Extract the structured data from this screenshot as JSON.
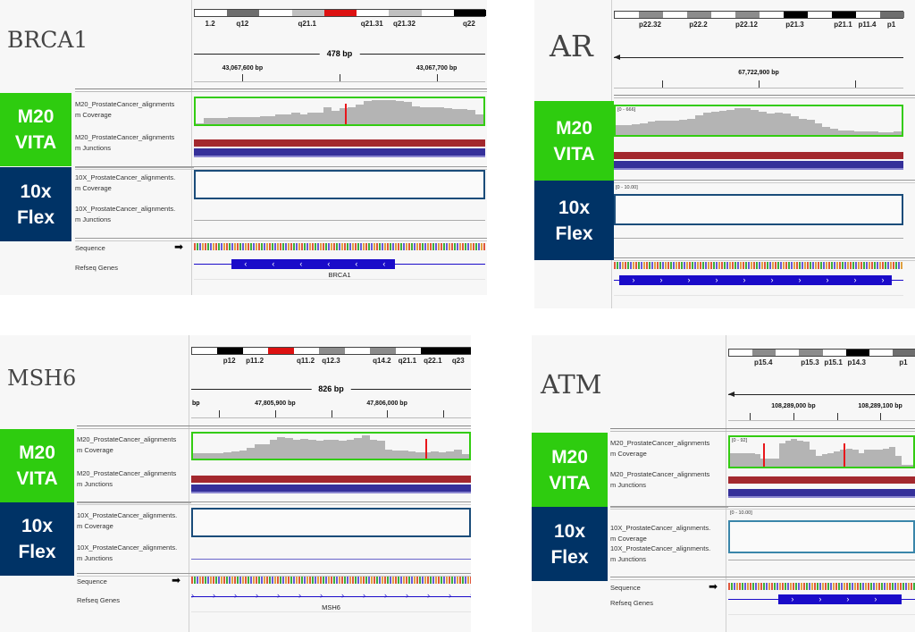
{
  "colors": {
    "m20_badge": "#2ecc0f",
    "flex_badge": "#003366",
    "m20_box": "#33cc11",
    "flex_box": "#1a4c7a",
    "atm_flex_box": "#3a86aa",
    "coverage": "#b4b4b4",
    "junction_red": "#a3282e",
    "junction_blue": "#35309a",
    "gene": "#1a0bc9",
    "mismatch": "#e8161b"
  },
  "badges": {
    "m20": "M20\nVITA",
    "flex": "10x\nFlex"
  },
  "tracks": {
    "m20_cov": [
      "M20_ProstateCancer_alignments",
      "m Coverage"
    ],
    "m20_junc": [
      "M20_ProstateCancer_alignments",
      "m Junctions"
    ],
    "flex_cov": [
      "10X_ProstateCancer_alignments.",
      "m Coverage"
    ],
    "flex_junc": [
      "10X_ProstateCancer_alignments.",
      "m Junctions"
    ],
    "sequence": "Sequence",
    "genes": "Refseq Genes"
  },
  "panels": [
    {
      "gene": "BRCA1",
      "show_track_labels": true,
      "bands": [
        {
          "name": "1.2",
          "stain": "gneg"
        },
        {
          "name": "q12",
          "stain": "gpos75"
        },
        {
          "name": "",
          "stain": "gneg"
        },
        {
          "name": "q21.1",
          "stain": "gpos25"
        },
        {
          "name": "",
          "stain": "centromere"
        },
        {
          "name": "q21.31",
          "stain": "gneg"
        },
        {
          "name": "q21.32",
          "stain": "gpos25"
        },
        {
          "name": "",
          "stain": "gneg"
        },
        {
          "name": "q22",
          "stain": "gpos100"
        }
      ],
      "span": "478 bp",
      "strand_arrow": false,
      "ticks": [
        "43,067,600 bp",
        "",
        "43,067,700 bp"
      ],
      "m20_range": "",
      "flex_range": "",
      "coverage_profile": [
        0.05,
        0.25,
        0.26,
        0.27,
        0.28,
        0.3,
        0.3,
        0.31,
        0.33,
        0.35,
        0.4,
        0.42,
        0.48,
        0.4,
        0.5,
        0.5,
        0.7,
        0.55,
        0.68,
        0.7,
        0.8,
        0.95,
        1,
        1,
        1,
        0.98,
        0.92,
        0.75,
        0.72,
        0.72,
        0.7,
        0.68,
        0.63,
        0.62,
        0.58,
        0.4
      ],
      "mismatch_at": [
        0.52
      ],
      "gene_label": "BRCA1",
      "gene_strand": "minus"
    },
    {
      "gene": "AR",
      "show_track_labels": false,
      "bands": [
        {
          "name": "",
          "stain": "gneg"
        },
        {
          "name": "p22.32",
          "stain": "gpos50"
        },
        {
          "name": "",
          "stain": "gneg"
        },
        {
          "name": "p22.2",
          "stain": "gpos50"
        },
        {
          "name": "",
          "stain": "gneg"
        },
        {
          "name": "p22.12",
          "stain": "gpos50"
        },
        {
          "name": "",
          "stain": "gneg"
        },
        {
          "name": "p21.3",
          "stain": "gpos100"
        },
        {
          "name": "",
          "stain": "gneg"
        },
        {
          "name": "p21.1",
          "stain": "gpos100"
        },
        {
          "name": "p11.4",
          "stain": "gneg"
        },
        {
          "name": "p1",
          "stain": "gpos75"
        }
      ],
      "span": "",
      "strand_arrow": true,
      "ticks": [
        "",
        "67,722,900 bp",
        ""
      ],
      "m20_range": "[0 - 666]",
      "flex_range": "[0 - 10.00]",
      "coverage_profile": [
        0.38,
        0.38,
        0.4,
        0.45,
        0.5,
        0.52,
        0.52,
        0.55,
        0.56,
        0.6,
        0.75,
        0.82,
        0.88,
        0.9,
        0.95,
        1,
        1,
        0.92,
        0.86,
        0.8,
        0.84,
        0.8,
        0.7,
        0.6,
        0.56,
        0.45,
        0.3,
        0.22,
        0.18,
        0.16,
        0.15,
        0.14,
        0.12,
        0.1,
        0.1,
        0.12
      ],
      "mismatch_at": [],
      "gene_label": "",
      "gene_strand": "plus"
    },
    {
      "gene": "MSH6",
      "show_track_labels": true,
      "bands": [
        {
          "name": "",
          "stain": "gneg"
        },
        {
          "name": "p12",
          "stain": "gpos100"
        },
        {
          "name": "p11.2",
          "stain": "gneg"
        },
        {
          "name": "",
          "stain": "centromere"
        },
        {
          "name": "q11.2",
          "stain": "gneg"
        },
        {
          "name": "q12.3",
          "stain": "gpos50"
        },
        {
          "name": "",
          "stain": "gneg"
        },
        {
          "name": "q14.2",
          "stain": "gpos50"
        },
        {
          "name": "q21.1",
          "stain": "gneg"
        },
        {
          "name": "q22.1",
          "stain": "gpos100"
        },
        {
          "name": "q23",
          "stain": "gpos100"
        }
      ],
      "span": "826 bp",
      "strand_arrow": false,
      "ticks": [
        "",
        "47,805,900 bp",
        "",
        "47,806,000 bp",
        ""
      ],
      "tick_leading": "bp",
      "m20_range": "",
      "flex_range": "",
      "coverage_profile": [
        0.22,
        0.22,
        0.22,
        0.22,
        0.28,
        0.3,
        0.35,
        0.45,
        0.62,
        0.6,
        0.8,
        0.92,
        0.9,
        0.82,
        0.85,
        0.8,
        0.78,
        0.8,
        0.82,
        0.78,
        0.82,
        0.88,
        1,
        0.82,
        0.78,
        0.38,
        0.36,
        0.34,
        0.3,
        0.28,
        0.27,
        0.3,
        0.28,
        0.3,
        0.38,
        0.2
      ],
      "mismatch_at": [
        0.84
      ],
      "gene_label": "MSH6",
      "gene_strand": "plus"
    },
    {
      "gene": "ATM",
      "show_track_labels": true,
      "bands": [
        {
          "name": "",
          "stain": "gneg"
        },
        {
          "name": "p15.4",
          "stain": "gpos50"
        },
        {
          "name": "",
          "stain": "gneg"
        },
        {
          "name": "p15.3",
          "stain": "gpos50"
        },
        {
          "name": "p15.1",
          "stain": "gneg"
        },
        {
          "name": "p14.3",
          "stain": "gpos100"
        },
        {
          "name": "",
          "stain": "gneg"
        },
        {
          "name": "p1",
          "stain": "gpos75"
        }
      ],
      "span": "",
      "strand_arrow": true,
      "ticks": [
        "",
        "108,289,000 bp",
        "",
        "108,289,100 bp"
      ],
      "m20_range": "[0 - 92]",
      "flex_range": "[0 - 10.00]",
      "coverage_profile": [
        0.5,
        0.5,
        0.5,
        0.5,
        0.45,
        0.3,
        0.3,
        0.3,
        0.85,
        0.95,
        1,
        0.95,
        0.9,
        0.6,
        0.4,
        0.45,
        0.5,
        0.55,
        0.6,
        0.65,
        0.6,
        0.5,
        0.62,
        0.6,
        0.62,
        0.65,
        0.7,
        0.4,
        0.05,
        0.05
      ],
      "mismatch_at": [
        0.18,
        0.62
      ],
      "gene_label": "",
      "gene_strand": "plus"
    }
  ]
}
